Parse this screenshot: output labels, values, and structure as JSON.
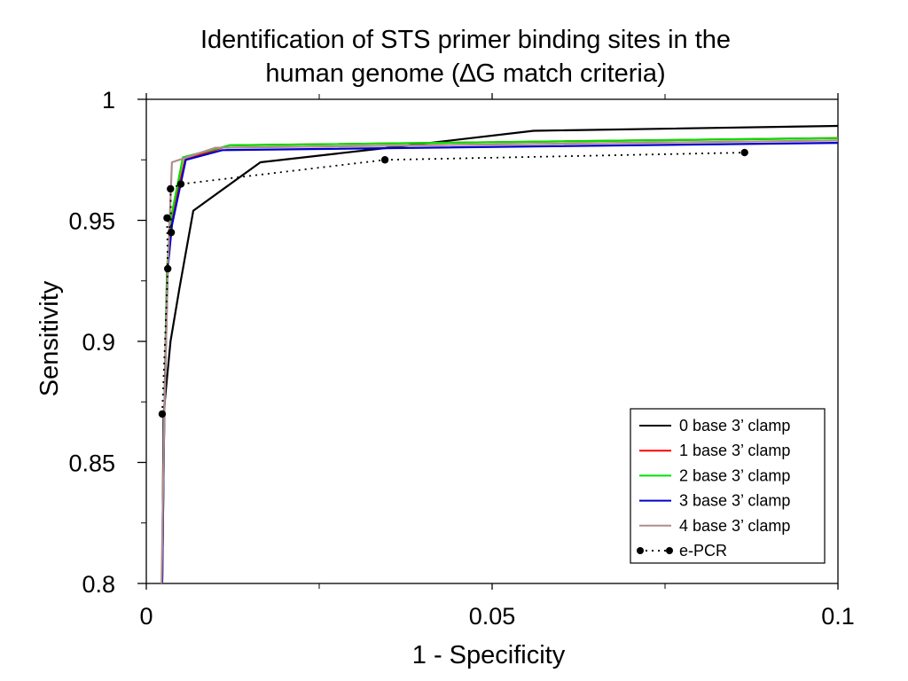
{
  "chart_data": {
    "type": "line",
    "title_line1": "Identification of STS primer binding sites in the",
    "title_line2": "human genome (∆G match criteria)",
    "xlabel": "1 - Specificity",
    "ylabel": "Sensitivity",
    "xlim": [
      0,
      0.1
    ],
    "ylim": [
      0.8,
      1
    ],
    "x_ticks": [
      {
        "value": 0,
        "label": "0"
      },
      {
        "value": 0.05,
        "label": "0.05"
      },
      {
        "value": 0.1,
        "label": "0.1"
      }
    ],
    "x_minor_ticks": [
      0.025,
      0.075
    ],
    "y_ticks": [
      {
        "value": 0.8,
        "label": "0.8"
      },
      {
        "value": 0.85,
        "label": "0.85"
      },
      {
        "value": 0.9,
        "label": "0.9"
      },
      {
        "value": 0.95,
        "label": "0.95"
      },
      {
        "value": 1,
        "label": "1"
      }
    ],
    "y_minor_ticks": [
      0.825,
      0.875,
      0.925,
      0.975
    ],
    "grid": false,
    "legend_position": "bottom-right",
    "series": [
      {
        "name": "0 base 3’ clamp",
        "color": "#000000",
        "style": "solid",
        "points": [
          [
            0.0023,
            0.8
          ],
          [
            0.0025,
            0.87
          ],
          [
            0.0035,
            0.9
          ],
          [
            0.0048,
            0.922
          ],
          [
            0.0068,
            0.954
          ],
          [
            0.0165,
            0.974
          ],
          [
            0.035,
            0.98
          ],
          [
            0.056,
            0.987
          ],
          [
            0.1,
            0.989
          ]
        ]
      },
      {
        "name": "1 base 3’ clamp",
        "color": "#ff0000",
        "style": "solid",
        "points": [
          [
            0.0023,
            0.8
          ],
          [
            0.0026,
            0.87
          ],
          [
            0.003,
            0.93
          ],
          [
            0.0036,
            0.95
          ],
          [
            0.0056,
            0.975
          ],
          [
            0.012,
            0.981
          ],
          [
            0.1,
            0.984
          ]
        ]
      },
      {
        "name": "2 base 3’ clamp",
        "color": "#00e000",
        "style": "solid",
        "points": [
          [
            0.0023,
            0.8
          ],
          [
            0.0026,
            0.87
          ],
          [
            0.003,
            0.93
          ],
          [
            0.0035,
            0.95
          ],
          [
            0.0053,
            0.976
          ],
          [
            0.012,
            0.981
          ],
          [
            0.1,
            0.984
          ]
        ]
      },
      {
        "name": "3 base 3’ clamp",
        "color": "#0000cc",
        "style": "solid",
        "points": [
          [
            0.0023,
            0.8
          ],
          [
            0.0026,
            0.87
          ],
          [
            0.0031,
            0.93
          ],
          [
            0.0037,
            0.948
          ],
          [
            0.0057,
            0.975
          ],
          [
            0.011,
            0.979
          ],
          [
            0.1,
            0.982
          ]
        ]
      },
      {
        "name": "4 base 3’ clamp",
        "color": "#b08c8c",
        "style": "solid",
        "points": [
          [
            0.0022,
            0.8
          ],
          [
            0.0026,
            0.87
          ],
          [
            0.0031,
            0.93
          ],
          [
            0.0037,
            0.974
          ],
          [
            0.01,
            0.98
          ],
          [
            0.1,
            0.983
          ]
        ]
      },
      {
        "name": "e-PCR",
        "color": "#000000",
        "style": "dotted",
        "markers": true,
        "points": [
          [
            0.0023,
            0.87
          ],
          [
            0.0031,
            0.93
          ],
          [
            0.003,
            0.951
          ],
          [
            0.0036,
            0.945
          ],
          [
            0.0035,
            0.963
          ],
          [
            0.005,
            0.965
          ],
          [
            0.0345,
            0.975
          ],
          [
            0.0865,
            0.978
          ]
        ]
      }
    ]
  }
}
